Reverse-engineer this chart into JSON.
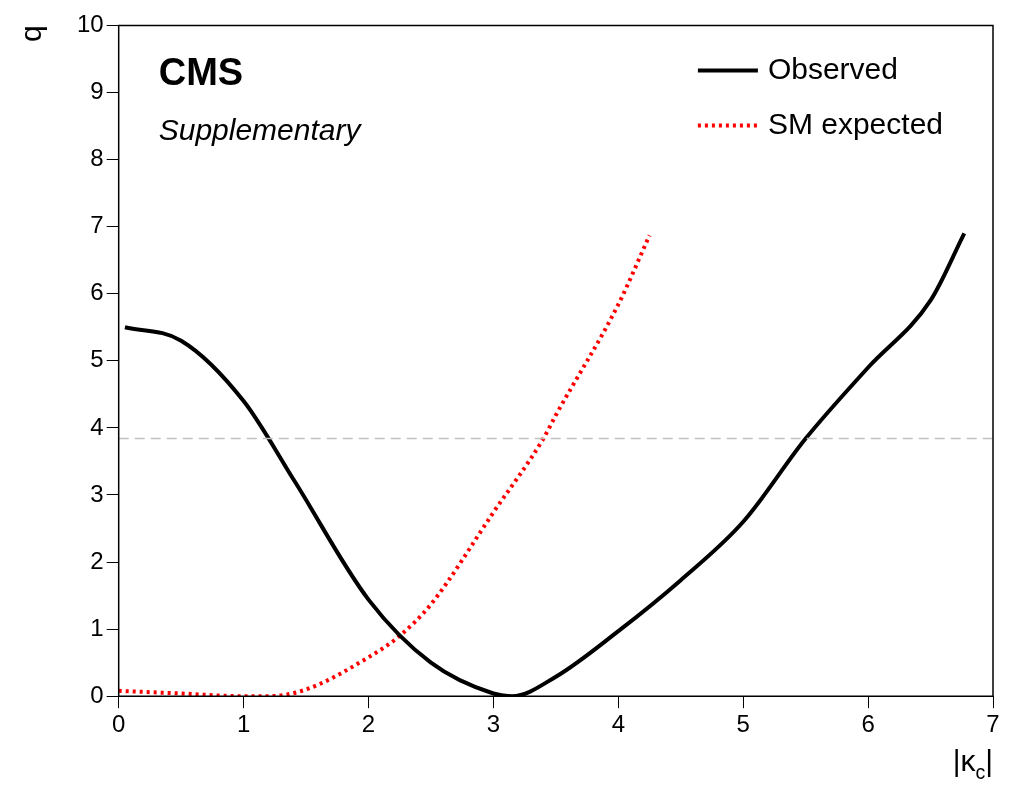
{
  "chart_data": {
    "type": "line",
    "xlabel": "|κ$_{c}$|",
    "ylabel": "q",
    "annotations": [
      "CMS",
      "Supplementary"
    ],
    "xlim": [
      0,
      7
    ],
    "xticks": [
      0,
      1,
      2,
      3,
      4,
      5,
      6,
      7
    ],
    "ylim": [
      0,
      10
    ],
    "yticks": [
      0,
      1,
      2,
      3,
      4,
      5,
      6,
      7,
      8,
      9,
      10
    ],
    "grid": false,
    "legend": "top right",
    "marker": "none",
    "ref_lines": [
      {
        "axis": "y",
        "value": 3.84,
        "color": "#c0c0c0",
        "line_style": "dashed"
      }
    ],
    "series": [
      {
        "name": "Observed",
        "color": "#000000",
        "line_style": "solid",
        "x": [
          0.05,
          0.5,
          1.0,
          1.41,
          2.0,
          2.5,
          3.0,
          3.15,
          3.5,
          4.0,
          4.5,
          5.0,
          5.5,
          6.0,
          6.5,
          6.77
        ],
        "values": [
          5.5,
          5.3,
          4.4,
          3.2,
          1.44,
          0.5,
          0.04,
          0,
          0.29,
          0.97,
          1.73,
          2.6,
          3.84,
          4.9,
          5.9,
          6.9
        ]
      },
      {
        "name": "SM expected",
        "color": "#ff0000",
        "line_style": "dotted",
        "x": [
          0.0,
          0.5,
          1.0,
          1.2,
          1.5,
          2.0,
          2.25,
          2.5,
          3.0,
          3.4,
          3.5,
          4.0,
          4.25
        ],
        "values": [
          0.08,
          0.04,
          0,
          0,
          0.1,
          0.58,
          0.9,
          1.37,
          2.74,
          3.84,
          4.19,
          5.84,
          6.87
        ]
      }
    ]
  }
}
